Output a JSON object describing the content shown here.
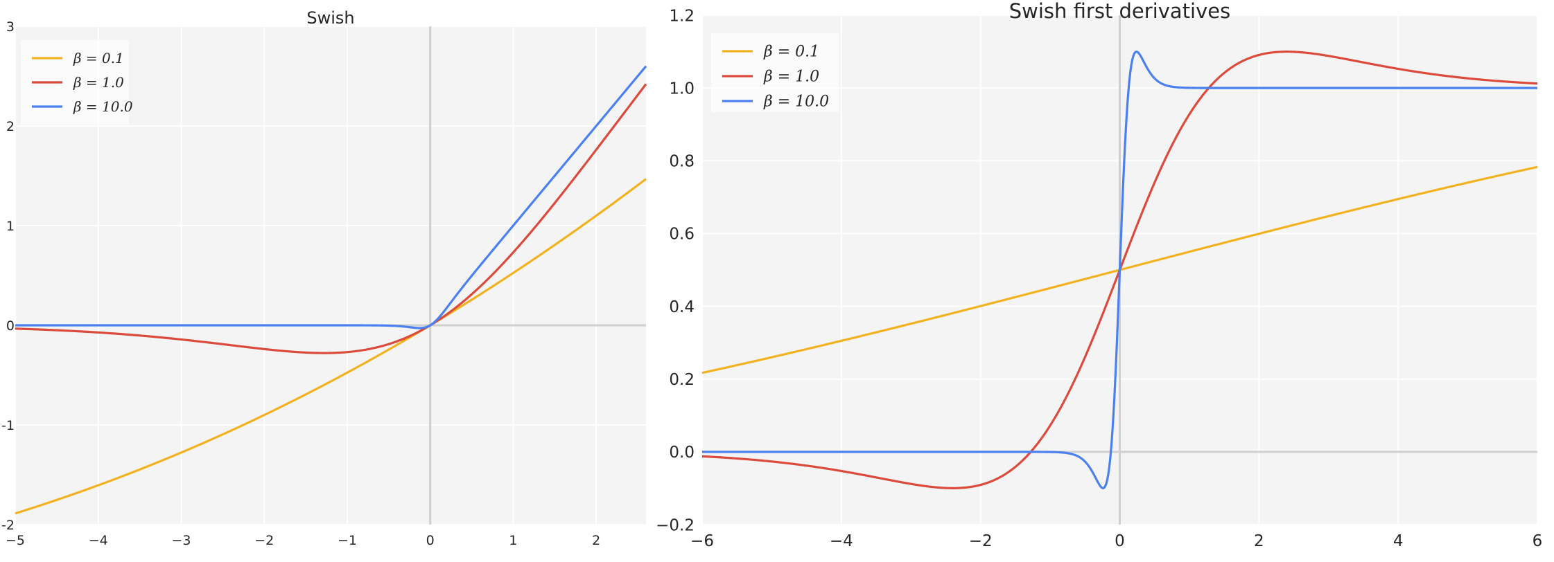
{
  "figure": {
    "colors": {
      "background": "#ffffff",
      "plot_bg": "#f4f4f4",
      "grid": "#ffffff",
      "zero_axis": "#d0d0d0"
    }
  },
  "chart_data": [
    {
      "type": "line",
      "title": "Swish",
      "function": "swish",
      "xlabel": "",
      "ylabel": "",
      "xlim": [
        -5,
        2.6
      ],
      "ylim": [
        -2,
        3
      ],
      "xticks": [
        -5,
        -4,
        -3,
        -2,
        -1,
        0,
        1,
        2
      ],
      "yticks": [
        -2,
        -1,
        0,
        1,
        2,
        3
      ],
      "xtick_labels": [
        "−5",
        "−4",
        "−3",
        "−2",
        "−1",
        "0",
        "1",
        "2"
      ],
      "ytick_labels": [
        "-2",
        "-1",
        "0",
        "1",
        "2",
        "3"
      ],
      "grid": true,
      "legend_position": "top-left",
      "series": [
        {
          "name": "β = 0.1",
          "beta": 0.1,
          "color": "#f2b21f",
          "x": [
            -5,
            -4,
            -3,
            -2,
            -1,
            0,
            1,
            2,
            2.6
          ],
          "values": [
            -1.88,
            -1.6,
            -1.28,
            -0.9,
            -0.48,
            0,
            0.52,
            1.1,
            1.49
          ]
        },
        {
          "name": "β = 1.0",
          "beta": 1.0,
          "color": "#dc4a3c",
          "x": [
            -5,
            -4,
            -3,
            -2,
            -1.28,
            -1,
            0,
            1,
            2,
            2.6
          ],
          "values": [
            -0.03,
            -0.07,
            -0.14,
            -0.24,
            -0.28,
            -0.27,
            0,
            0.73,
            1.76,
            2.43
          ]
        },
        {
          "name": "β = 10.0",
          "beta": 10.0,
          "color": "#4a80f0",
          "x": [
            -5,
            -1,
            -0.2,
            0,
            0.2,
            1,
            2,
            2.6
          ],
          "values": [
            0,
            0,
            -0.02,
            0,
            0.18,
            1.0,
            2.0,
            2.6
          ]
        }
      ]
    },
    {
      "type": "line",
      "title": "Swish first derivatives",
      "function": "swish_derivative",
      "xlabel": "",
      "ylabel": "",
      "xlim": [
        -6,
        6
      ],
      "ylim": [
        -0.2,
        1.2
      ],
      "xticks": [
        -6,
        -4,
        -2,
        0,
        2,
        4,
        6
      ],
      "yticks": [
        -0.2,
        0.0,
        0.2,
        0.4,
        0.6,
        0.8,
        1.0,
        1.2
      ],
      "xtick_labels": [
        "−6",
        "−4",
        "−2",
        "0",
        "2",
        "4",
        "6"
      ],
      "ytick_labels": [
        "−0.2",
        "0.0",
        "0.2",
        "0.4",
        "0.6",
        "0.8",
        "1.0",
        "1.2"
      ],
      "grid": true,
      "legend_position": "top-left",
      "series": [
        {
          "name": "β = 0.1",
          "beta": 0.1,
          "color": "#f2b21f",
          "x": [
            -6,
            -4,
            -2,
            0,
            2,
            4,
            6
          ],
          "values": [
            0.22,
            0.3,
            0.4,
            0.5,
            0.6,
            0.7,
            0.78
          ]
        },
        {
          "name": "β = 1.0",
          "beta": 1.0,
          "color": "#dc4a3c",
          "x": [
            -6,
            -4,
            -2.4,
            -1.3,
            0,
            1.3,
            2.4,
            4,
            6
          ],
          "values": [
            -0.01,
            -0.05,
            -0.1,
            0,
            0.5,
            1.0,
            1.1,
            1.05,
            1.01
          ]
        },
        {
          "name": "β = 10.0",
          "beta": 10.0,
          "color": "#4a80f0",
          "x": [
            -6,
            -1,
            -0.24,
            0,
            0.24,
            1,
            6
          ],
          "values": [
            0,
            0,
            -0.1,
            0.5,
            1.1,
            1.0,
            1.0
          ]
        }
      ]
    }
  ]
}
